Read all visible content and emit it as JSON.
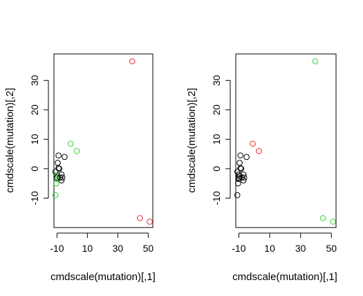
{
  "colors": {
    "black": "#000000",
    "red": "#e8232a",
    "green": "#2fcf2f"
  },
  "chart_data": [
    {
      "type": "scatter",
      "title": "",
      "xlabel": "cmdscale(mutation)[,1]",
      "ylabel": "cmdscale(mutation)[,2]",
      "xlim": [
        -12,
        53
      ],
      "ylim": [
        -20,
        39
      ],
      "xticks": [
        "-10",
        "10",
        "30",
        "50"
      ],
      "xtick_values": [
        -10,
        10,
        30,
        50
      ],
      "yticks": [
        "-10",
        "0",
        "10",
        "20",
        "30"
      ],
      "ytick_values": [
        -10,
        0,
        10,
        20,
        30
      ],
      "grid": false,
      "points": [
        {
          "x": 39.5,
          "y": 36.5,
          "color": "red"
        },
        {
          "x": 44.5,
          "y": -16.8,
          "color": "red"
        },
        {
          "x": 51.0,
          "y": -18.0,
          "color": "red"
        },
        {
          "x": -1.0,
          "y": 8.5,
          "color": "green"
        },
        {
          "x": 3.0,
          "y": 6.0,
          "color": "green"
        },
        {
          "x": -11.0,
          "y": -9.0,
          "color": "green"
        },
        {
          "x": -10.5,
          "y": -5.0,
          "color": "green"
        },
        {
          "x": -10.0,
          "y": -3.5,
          "color": "green"
        },
        {
          "x": -9.5,
          "y": -2.5,
          "color": "green"
        },
        {
          "x": -10.0,
          "y": -2.0,
          "color": "green"
        },
        {
          "x": -9.0,
          "y": 4.5,
          "color": "black"
        },
        {
          "x": -5.0,
          "y": 4.0,
          "color": "black"
        },
        {
          "x": -9.5,
          "y": 2.0,
          "color": "black"
        },
        {
          "x": -9.0,
          "y": 0.2,
          "color": "black"
        },
        {
          "x": -8.5,
          "y": 0.0,
          "color": "black"
        },
        {
          "x": -11.0,
          "y": -1.0,
          "color": "black"
        },
        {
          "x": -7.0,
          "y": -2.0,
          "color": "black"
        },
        {
          "x": -8.0,
          "y": -3.0,
          "color": "black"
        },
        {
          "x": -6.5,
          "y": -3.0,
          "color": "black"
        },
        {
          "x": -7.0,
          "y": -4.0,
          "color": "black"
        },
        {
          "x": -10.0,
          "y": -3.0,
          "color": "black"
        }
      ]
    },
    {
      "type": "scatter",
      "title": "",
      "xlabel": "cmdscale(mutation)[,1]",
      "ylabel": "cmdscale(mutation)[,2]",
      "xlim": [
        -12,
        53
      ],
      "ylim": [
        -20,
        39
      ],
      "xticks": [
        "-10",
        "10",
        "30",
        "50"
      ],
      "xtick_values": [
        -10,
        10,
        30,
        50
      ],
      "yticks": [
        "-10",
        "0",
        "10",
        "20",
        "30"
      ],
      "ytick_values": [
        -10,
        0,
        10,
        20,
        30
      ],
      "grid": false,
      "points": [
        {
          "x": 39.5,
          "y": 36.5,
          "color": "green"
        },
        {
          "x": 44.5,
          "y": -16.8,
          "color": "green"
        },
        {
          "x": 51.0,
          "y": -18.0,
          "color": "green"
        },
        {
          "x": -1.0,
          "y": 8.5,
          "color": "red"
        },
        {
          "x": 3.0,
          "y": 6.0,
          "color": "red"
        },
        {
          "x": -11.0,
          "y": -9.0,
          "color": "black"
        },
        {
          "x": -10.5,
          "y": -5.0,
          "color": "black"
        },
        {
          "x": -10.0,
          "y": -3.5,
          "color": "black"
        },
        {
          "x": -9.5,
          "y": -2.5,
          "color": "black"
        },
        {
          "x": -10.0,
          "y": -2.0,
          "color": "black"
        },
        {
          "x": -9.0,
          "y": 4.5,
          "color": "black"
        },
        {
          "x": -5.0,
          "y": 4.0,
          "color": "black"
        },
        {
          "x": -9.5,
          "y": 2.0,
          "color": "black"
        },
        {
          "x": -9.0,
          "y": 0.2,
          "color": "black"
        },
        {
          "x": -8.5,
          "y": 0.0,
          "color": "black"
        },
        {
          "x": -11.0,
          "y": -1.0,
          "color": "black"
        },
        {
          "x": -7.0,
          "y": -2.0,
          "color": "black"
        },
        {
          "x": -8.0,
          "y": -3.0,
          "color": "black"
        },
        {
          "x": -6.5,
          "y": -3.0,
          "color": "black"
        },
        {
          "x": -7.0,
          "y": -4.0,
          "color": "black"
        },
        {
          "x": -10.0,
          "y": -3.0,
          "color": "black"
        }
      ]
    }
  ]
}
